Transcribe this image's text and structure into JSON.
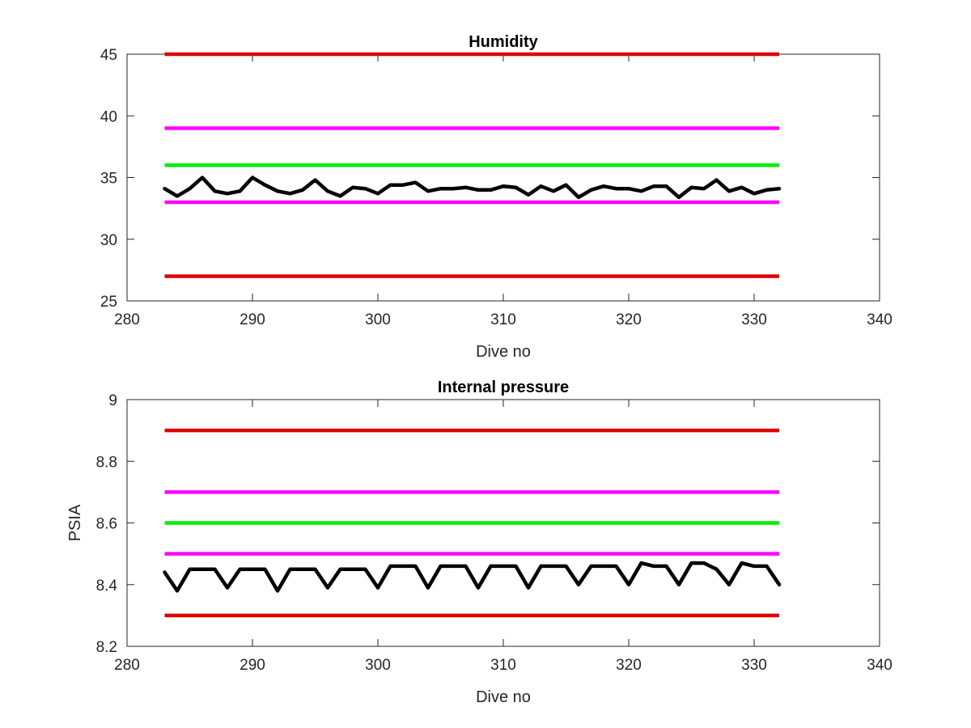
{
  "colors": {
    "red": "#dd0000",
    "magenta": "#ff00ff",
    "green": "#00ee00",
    "black": "#000000",
    "axis": "#262626"
  },
  "chart_data": [
    {
      "type": "line",
      "title": "Humidity",
      "xlabel": "Dive no",
      "ylabel": "",
      "xlim": [
        280,
        340
      ],
      "ylim": [
        25,
        45
      ],
      "xticks": [
        "280",
        "290",
        "300",
        "310",
        "320",
        "330",
        "340"
      ],
      "yticks": [
        "25",
        "30",
        "35",
        "40",
        "45"
      ],
      "grid": false,
      "limit_lines": [
        {
          "y": 45,
          "x": [
            283,
            332
          ],
          "color": "red"
        },
        {
          "y": 39,
          "x": [
            283,
            332
          ],
          "color": "magenta"
        },
        {
          "y": 36,
          "x": [
            283,
            332
          ],
          "color": "green"
        },
        {
          "y": 33,
          "x": [
            283,
            332
          ],
          "color": "magenta"
        },
        {
          "y": 27,
          "x": [
            283,
            332
          ],
          "color": "red"
        }
      ],
      "series": [
        {
          "color": "black",
          "x": [
            283,
            284,
            285,
            286,
            287,
            288,
            289,
            290,
            291,
            292,
            293,
            294,
            295,
            296,
            297,
            298,
            299,
            300,
            301,
            302,
            303,
            304,
            305,
            306,
            307,
            308,
            309,
            310,
            311,
            312,
            313,
            314,
            315,
            316,
            317,
            318,
            319,
            320,
            321,
            322,
            323,
            324,
            325,
            326,
            327,
            328,
            329,
            330,
            331,
            332
          ],
          "values": [
            34.1,
            33.5,
            34.1,
            35.0,
            33.9,
            33.7,
            33.9,
            35.0,
            34.4,
            33.9,
            33.7,
            34.0,
            34.8,
            33.9,
            33.5,
            34.2,
            34.1,
            33.7,
            34.4,
            34.4,
            34.6,
            33.9,
            34.1,
            34.1,
            34.2,
            34.0,
            34.0,
            34.3,
            34.2,
            33.6,
            34.3,
            33.9,
            34.4,
            33.4,
            34.0,
            34.3,
            34.1,
            34.1,
            33.9,
            34.3,
            34.3,
            33.4,
            34.2,
            34.1,
            34.8,
            33.9,
            34.2,
            33.7,
            34.0,
            34.1
          ]
        }
      ]
    },
    {
      "type": "line",
      "title": "Internal pressure",
      "xlabel": "Dive no",
      "ylabel": "PSIA",
      "xlim": [
        280,
        340
      ],
      "ylim": [
        8.2,
        9.0
      ],
      "xticks": [
        "280",
        "290",
        "300",
        "310",
        "320",
        "330",
        "340"
      ],
      "yticks": [
        "8.2",
        "8.4",
        "8.6",
        "8.8",
        "9"
      ],
      "grid": false,
      "limit_lines": [
        {
          "y": 8.9,
          "x": [
            283,
            332
          ],
          "color": "red"
        },
        {
          "y": 8.7,
          "x": [
            283,
            332
          ],
          "color": "magenta"
        },
        {
          "y": 8.6,
          "x": [
            283,
            332
          ],
          "color": "green"
        },
        {
          "y": 8.5,
          "x": [
            283,
            332
          ],
          "color": "magenta"
        },
        {
          "y": 8.3,
          "x": [
            283,
            332
          ],
          "color": "red"
        }
      ],
      "series": [
        {
          "color": "black",
          "x": [
            283,
            284,
            285,
            286,
            287,
            288,
            289,
            290,
            291,
            292,
            293,
            294,
            295,
            296,
            297,
            298,
            299,
            300,
            301,
            302,
            303,
            304,
            305,
            306,
            307,
            308,
            309,
            310,
            311,
            312,
            313,
            314,
            315,
            316,
            317,
            318,
            319,
            320,
            321,
            322,
            323,
            324,
            325,
            326,
            327,
            328,
            329,
            330,
            331,
            332
          ],
          "values": [
            8.44,
            8.38,
            8.45,
            8.45,
            8.45,
            8.39,
            8.45,
            8.45,
            8.45,
            8.38,
            8.45,
            8.45,
            8.45,
            8.39,
            8.45,
            8.45,
            8.45,
            8.39,
            8.46,
            8.46,
            8.46,
            8.39,
            8.46,
            8.46,
            8.46,
            8.39,
            8.46,
            8.46,
            8.46,
            8.39,
            8.46,
            8.46,
            8.46,
            8.4,
            8.46,
            8.46,
            8.46,
            8.4,
            8.47,
            8.46,
            8.46,
            8.4,
            8.47,
            8.47,
            8.45,
            8.4,
            8.47,
            8.46,
            8.46,
            8.4
          ]
        }
      ]
    }
  ]
}
